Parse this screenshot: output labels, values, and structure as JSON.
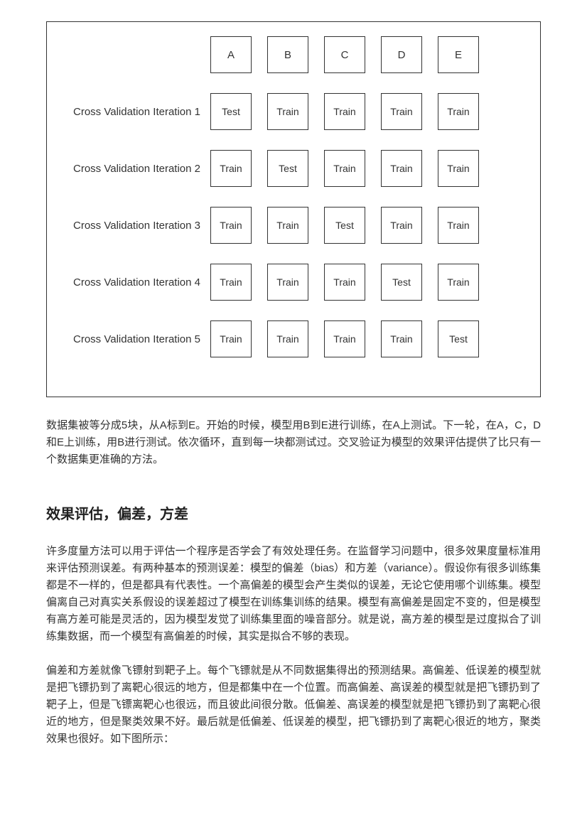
{
  "cv_diagram": {
    "headers": [
      "A",
      "B",
      "C",
      "D",
      "E"
    ],
    "rows": [
      {
        "label": "Cross Validation Iteration 1",
        "cells": [
          "Test",
          "Train",
          "Train",
          "Train",
          "Train"
        ]
      },
      {
        "label": "Cross Validation Iteration 2",
        "cells": [
          "Train",
          "Test",
          "Train",
          "Train",
          "Train"
        ]
      },
      {
        "label": "Cross Validation Iteration 3",
        "cells": [
          "Train",
          "Train",
          "Test",
          "Train",
          "Train"
        ]
      },
      {
        "label": "Cross Validation Iteration 4",
        "cells": [
          "Train",
          "Train",
          "Train",
          "Test",
          "Train"
        ]
      },
      {
        "label": "Cross Validation Iteration 5",
        "cells": [
          "Train",
          "Train",
          "Train",
          "Train",
          "Test"
        ]
      }
    ]
  },
  "paragraph_1": "数据集被等分成5块，从A标到E。开始的时候，模型用B到E进行训练，在A上测试。下一轮，在A，C，D和E上训练，用B进行测试。依次循环，直到每一块都测试过。交叉验证为模型的效果评估提供了比只有一个数据集更准确的方法。",
  "heading_1": "效果评估，偏差，方差",
  "paragraph_2": "许多度量方法可以用于评估一个程序是否学会了有效处理任务。在监督学习问题中，很多效果度量标准用来评估预测误差。有两种基本的预测误差：模型的偏差（bias）和方差（variance）。假设你有很多训练集都是不一样的，但是都具有代表性。一个高偏差的模型会产生类似的误差，无论它使用哪个训练集。模型偏离自己对真实关系假设的误差超过了模型在训练集训练的结果。模型有高偏差是固定不变的，但是模型有高方差可能是灵活的，因为模型发觉了训练集里面的噪音部分。就是说，高方差的模型是过度拟合了训练集数据，而一个模型有高偏差的时候，其实是拟合不够的表现。",
  "paragraph_3": "偏差和方差就像飞镖射到靶子上。每个飞镖就是从不同数据集得出的预测结果。高偏差、低误差的模型就是把飞镖扔到了离靶心很远的地方，但是都集中在一个位置。而高偏差、高误差的模型就是把飞镖扔到了靶子上，但是飞镖离靶心也很远，而且彼此间很分散。低偏差、高误差的模型就是把飞镖扔到了离靶心很近的地方，但是聚类效果不好。最后就是低偏差、低误差的模型，把飞镖扔到了离靶心很近的地方，聚类效果也很好。如下图所示："
}
